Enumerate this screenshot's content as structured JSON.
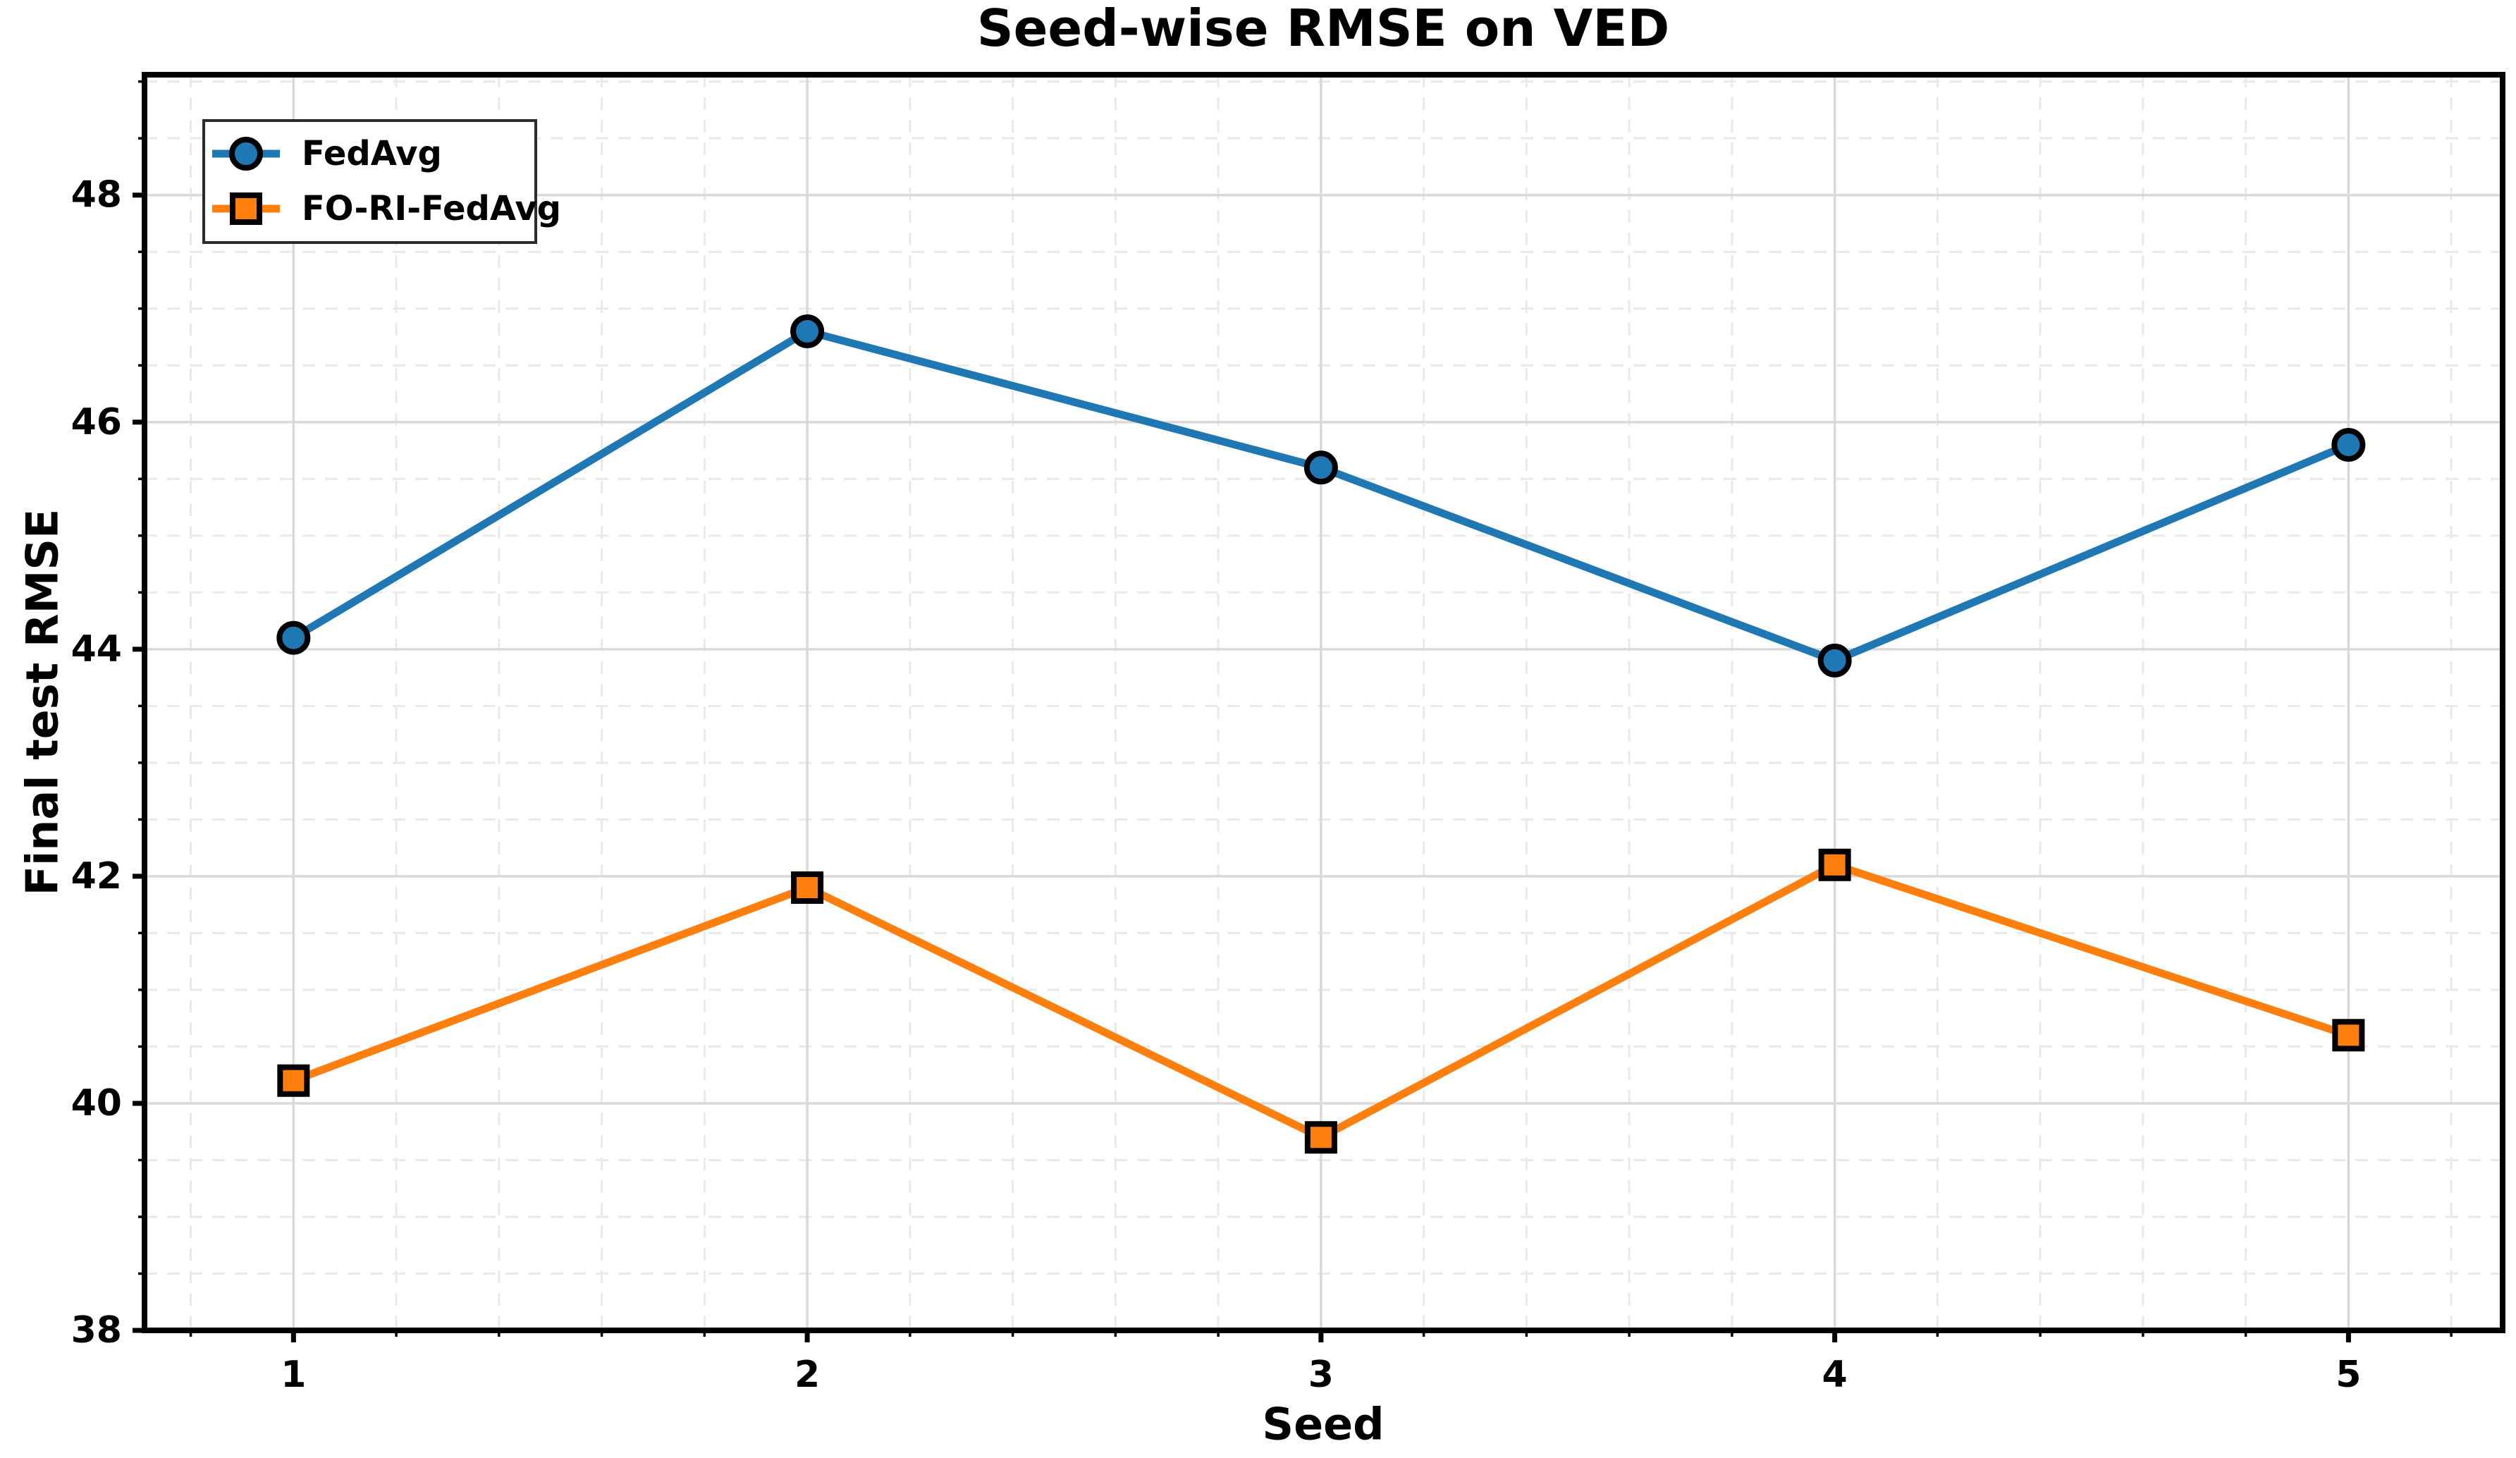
{
  "chart_data": {
    "type": "line",
    "title": "Seed-wise RMSE on VED",
    "xlabel": "Seed",
    "ylabel": "Final test RMSE",
    "x": [
      1,
      2,
      3,
      4,
      5
    ],
    "series": [
      {
        "name": "FedAvg",
        "color": "#1f77b4",
        "marker": "circle",
        "values": [
          44.1,
          46.8,
          45.6,
          43.9,
          45.8
        ]
      },
      {
        "name": "FO-RI-FedAvg",
        "color": "#ff7f0e",
        "marker": "square",
        "values": [
          40.2,
          41.9,
          39.7,
          42.1,
          40.6
        ]
      }
    ],
    "xlim": [
      0.71,
      5.3
    ],
    "ylim": [
      38,
      49.06
    ],
    "xticks": [
      1,
      2,
      3,
      4,
      5
    ],
    "xtick_labels": [
      "1",
      "2",
      "3",
      "4",
      "5"
    ],
    "yticks": [
      38,
      40,
      42,
      44,
      46,
      48
    ],
    "ytick_labels": [
      "38",
      "40",
      "42",
      "44",
      "46",
      "48"
    ],
    "x_minor_step": 0.2,
    "y_minor_step": 0.5,
    "grid": {
      "on": true,
      "major_color": "#d9d9d9",
      "minor_color": "#e9e9e9"
    },
    "legend": {
      "position": "upper-left"
    },
    "marker_edge_color": "#000000",
    "spine_color": "#000000",
    "text_color": "#000000"
  }
}
